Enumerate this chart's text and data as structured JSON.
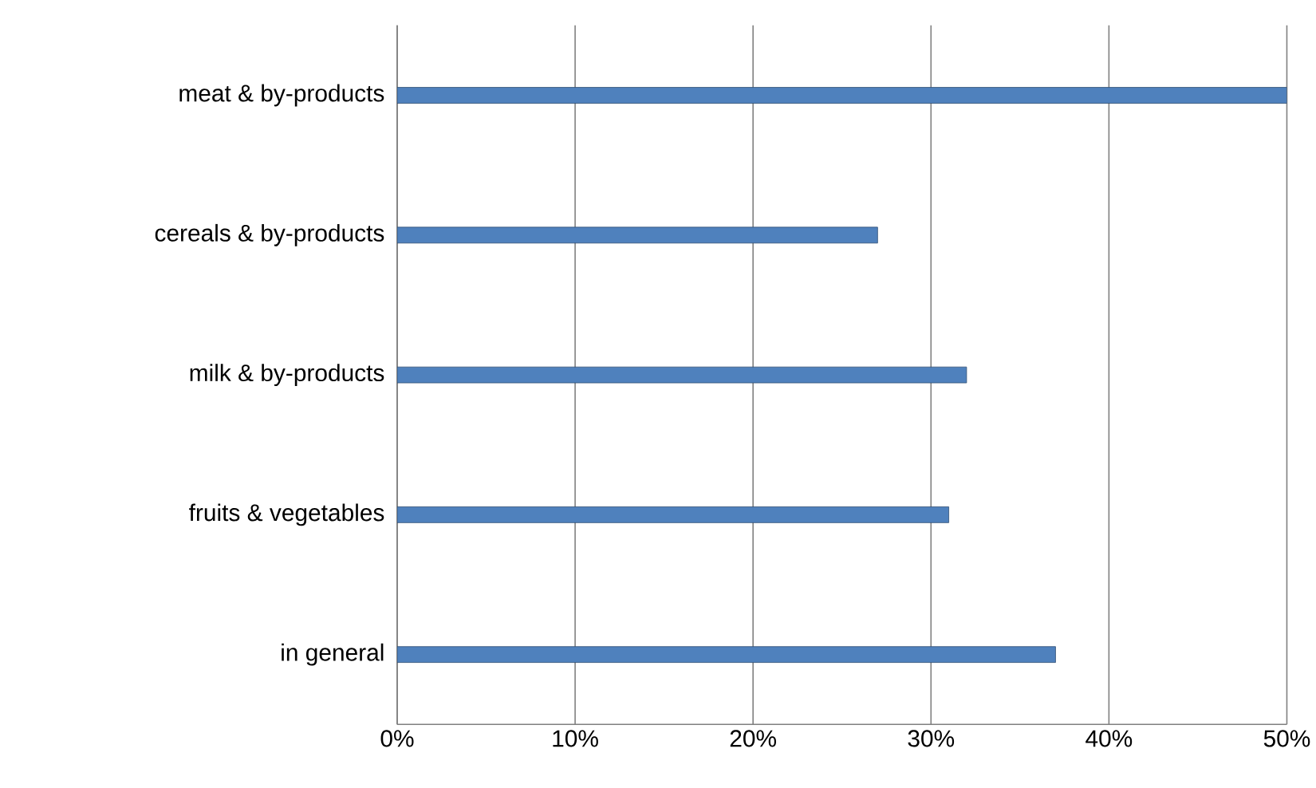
{
  "chart_data": {
    "type": "bar",
    "orientation": "horizontal",
    "categories": [
      "meat & by-products",
      "cereals & by-products",
      "milk & by-products",
      "fruits & vegetables",
      "in general"
    ],
    "values": [
      50,
      27,
      32,
      31,
      37
    ],
    "color": "#4f81bd",
    "xlim": [
      0,
      50
    ],
    "xticks": [
      {
        "value": 0,
        "label": "0%"
      },
      {
        "value": 10,
        "label": "10%"
      },
      {
        "value": 20,
        "label": "20%"
      },
      {
        "value": 30,
        "label": "30%"
      },
      {
        "value": 40,
        "label": "40%"
      },
      {
        "value": 50,
        "label": "50%"
      }
    ],
    "grid": "x"
  }
}
